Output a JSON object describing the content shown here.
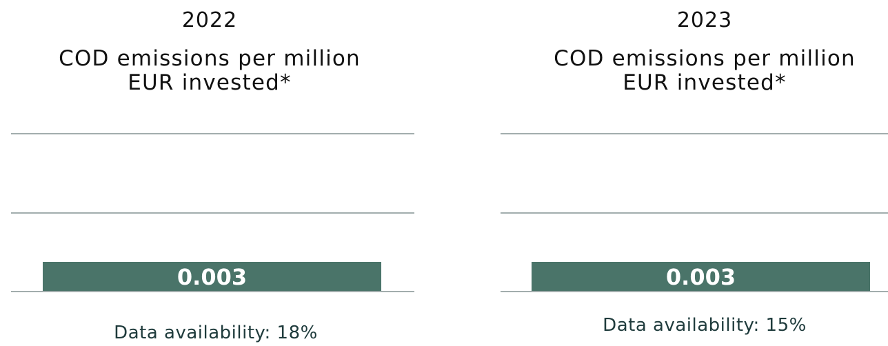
{
  "chart_data": [
    {
      "type": "bar",
      "year": "2022",
      "title": "COD emissions per million EUR invested*",
      "categories": [
        "2022"
      ],
      "values": [
        0.003
      ],
      "value_labels": [
        "0.003"
      ],
      "footnote": "Data availability: 18%",
      "grid": true,
      "colors": {
        "bar": "#4a7469",
        "grid": "#a2adad",
        "label": "#ffffff"
      }
    },
    {
      "type": "bar",
      "year": "2023",
      "title": "COD emissions per million EUR invested*",
      "categories": [
        "2023"
      ],
      "values": [
        0.003
      ],
      "value_labels": [
        "0.003"
      ],
      "footnote": "Data availability: 15%",
      "grid": true,
      "colors": {
        "bar": "#4a7469",
        "grid": "#a2adad",
        "label": "#ffffff"
      }
    }
  ]
}
